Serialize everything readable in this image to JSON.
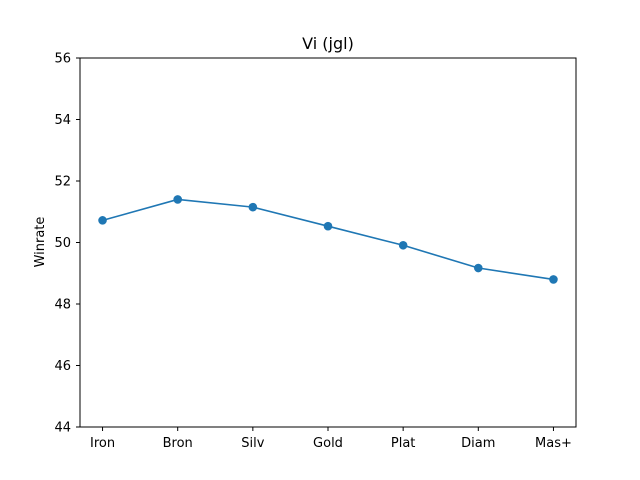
{
  "chart_data": {
    "type": "line",
    "title": "Vi (jgl)",
    "xlabel": "",
    "ylabel": "Winrate",
    "categories": [
      "Iron",
      "Bron",
      "Silv",
      "Gold",
      "Plat",
      "Diam",
      "Mas+"
    ],
    "series": [
      {
        "values": [
          50.72,
          51.4,
          51.15,
          50.53,
          49.91,
          49.17,
          48.8
        ],
        "color": "#1f77b4"
      }
    ],
    "ylim": [
      44,
      56
    ],
    "yticks": [
      44,
      46,
      48,
      50,
      52,
      54,
      56
    ],
    "grid": false,
    "legend": "none"
  }
}
